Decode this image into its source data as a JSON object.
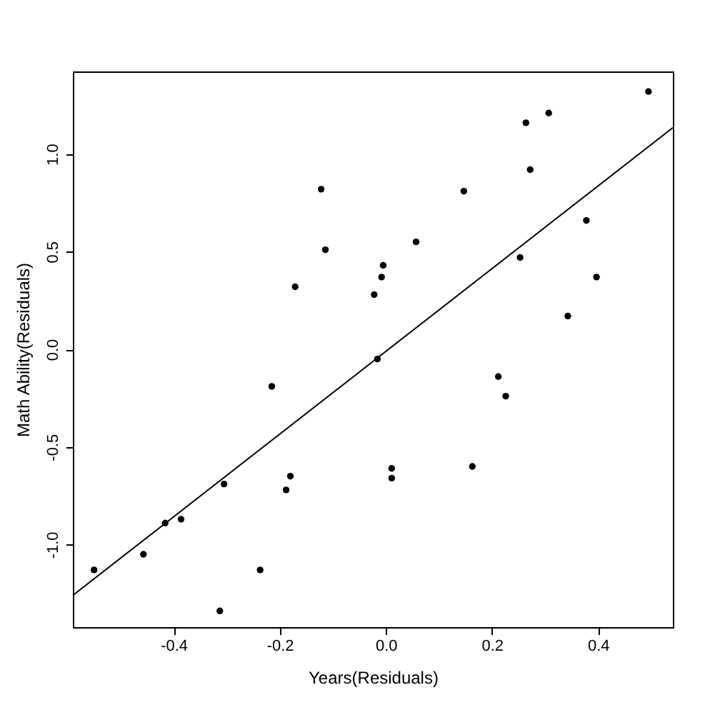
{
  "chart_data": {
    "type": "scatter",
    "xlabel": "Years(Residuals)",
    "ylabel": "Math Ability(Residuals)",
    "xlim": [
      -0.59,
      0.541
    ],
    "ylim": [
      -1.423,
      1.423
    ],
    "xticks": [
      {
        "value": -0.4,
        "label": "-0.4"
      },
      {
        "value": -0.2,
        "label": "-0.2"
      },
      {
        "value": 0,
        "label": "0.0"
      },
      {
        "value": 0.2,
        "label": "0.2"
      },
      {
        "value": 0.4,
        "label": "0.4"
      }
    ],
    "yticks": [
      {
        "value": -1,
        "label": "-1.0"
      },
      {
        "value": -0.5,
        "label": "-0.5"
      },
      {
        "value": 0,
        "label": "0.0"
      },
      {
        "value": 0.5,
        "label": "0.5"
      },
      {
        "value": 1,
        "label": "1.0"
      }
    ],
    "marker": "circle",
    "series": [
      {
        "type": "scatter",
        "color": "#000000",
        "x": [
          -0.55,
          -0.457,
          -0.416,
          -0.386,
          -0.313,
          -0.305,
          -0.237,
          -0.215,
          -0.188,
          -0.18,
          -0.171,
          -0.122,
          -0.114,
          -0.022,
          -0.016,
          -0.008,
          -0.005,
          0.011,
          0.011,
          0.057,
          0.147,
          0.163,
          0.212,
          0.226,
          0.253,
          0.264,
          0.272,
          0.307,
          0.343,
          0.378,
          0.397,
          0.495
        ],
        "values": [
          -1.13,
          -1.05,
          -0.89,
          -0.87,
          -1.34,
          -0.69,
          -1.13,
          -0.19,
          -0.72,
          -0.65,
          0.32,
          0.82,
          0.51,
          0.28,
          -0.05,
          0.37,
          0.43,
          -0.61,
          -0.66,
          0.55,
          0.81,
          -0.6,
          -0.14,
          -0.24,
          0.47,
          1.16,
          0.92,
          1.21,
          0.17,
          0.66,
          0.37,
          1.32
        ]
      },
      {
        "type": "line",
        "color": "#000000",
        "marker": "none",
        "line_style": "solid",
        "x": [
          -0.59,
          0.541
        ],
        "values": [
          -1.26,
          1.135
        ]
      }
    ]
  }
}
